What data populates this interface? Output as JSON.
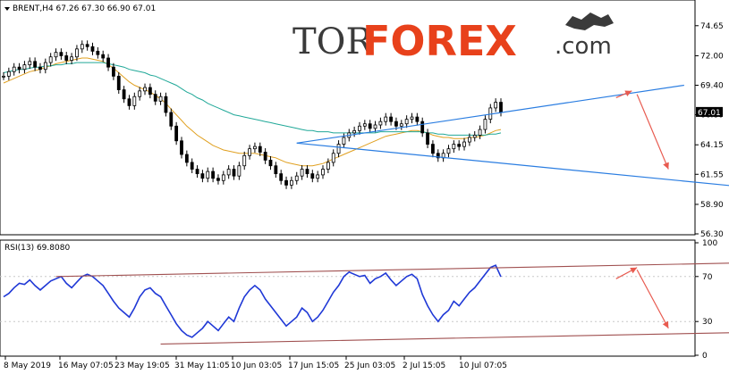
{
  "chart_data": [
    {
      "type": "candlestick",
      "header": "BRENT,H4  67.26 67.30 66.90 67.01",
      "symbol": "BRENT",
      "timeframe": "H4",
      "ohlc": {
        "open": 67.26,
        "high": 67.3,
        "low": 66.9,
        "close": 67.01
      },
      "current_price_label": "67.01",
      "current_price": 67.01,
      "ylim": [
        56.3,
        76.6
      ],
      "yticks": [
        "74.65",
        "72.00",
        "69.40",
        "66.80",
        "64.15",
        "61.55",
        "58.90",
        "56.30"
      ],
      "ytick_values": [
        74.65,
        72.0,
        69.4,
        66.8,
        64.15,
        61.55,
        58.9,
        56.3
      ],
      "x_labels": [
        "8 May 2019",
        "16 May 07:05",
        "23 May 19:05",
        "31 May 11:05",
        "10 Jun 03:05",
        "17 Jun 15:05",
        "25 Jun 03:05",
        "2 Jul 15:05",
        "10 Jul 07:05"
      ],
      "closes": [
        70.2,
        70.6,
        71.0,
        70.8,
        71.2,
        71.5,
        71.0,
        70.8,
        71.4,
        71.9,
        72.3,
        72.0,
        71.6,
        71.9,
        72.6,
        73.0,
        72.8,
        72.4,
        72.1,
        71.8,
        71.0,
        70.2,
        69.0,
        68.2,
        67.6,
        68.4,
        68.9,
        69.2,
        68.6,
        68.0,
        68.4,
        67.0,
        65.8,
        64.5,
        63.3,
        62.6,
        62.0,
        61.6,
        61.2,
        61.8,
        61.2,
        61.0,
        61.5,
        62.0,
        61.4,
        62.3,
        63.2,
        63.8,
        64.0,
        63.5,
        62.8,
        62.3,
        61.6,
        61.0,
        60.6,
        61.0,
        61.4,
        62.0,
        61.6,
        61.2,
        61.5,
        62.0,
        62.6,
        63.4,
        64.2,
        64.8,
        65.2,
        65.4,
        65.8,
        66.0,
        65.6,
        65.9,
        66.2,
        66.6,
        66.2,
        65.8,
        66.0,
        66.4,
        66.6,
        66.2,
        65.2,
        64.2,
        63.4,
        63.0,
        63.4,
        63.8,
        64.2,
        64.0,
        64.4,
        64.8,
        65.0,
        65.5,
        66.4,
        67.4,
        67.9,
        67.01
      ],
      "moving_averages": [
        {
          "color": "#e0a020",
          "values": [
            69.6,
            69.8,
            70.0,
            70.2,
            70.4,
            70.6,
            70.7,
            70.8,
            71.0,
            71.1,
            71.3,
            71.4,
            71.5,
            71.6,
            71.7,
            71.8,
            71.8,
            71.7,
            71.6,
            71.5,
            71.2,
            70.9,
            70.5,
            70.1,
            69.7,
            69.4,
            69.2,
            69.0,
            68.8,
            68.5,
            68.2,
            67.8,
            67.3,
            66.8,
            66.3,
            65.8,
            65.4,
            65.0,
            64.7,
            64.4,
            64.1,
            63.9,
            63.7,
            63.6,
            63.5,
            63.4,
            63.4,
            63.4,
            63.4,
            63.3,
            63.2,
            63.1,
            63.0,
            62.8,
            62.6,
            62.5,
            62.4,
            62.3,
            62.3,
            62.3,
            62.4,
            62.5,
            62.7,
            62.9,
            63.1,
            63.3,
            63.5,
            63.7,
            63.9,
            64.1,
            64.3,
            64.5,
            64.7,
            64.9,
            65.0,
            65.1,
            65.2,
            65.3,
            65.4,
            65.4,
            65.3,
            65.2,
            65.0,
            64.9,
            64.8,
            64.8,
            64.7,
            64.7,
            64.7,
            64.8,
            64.8,
            64.9,
            65.0,
            65.2,
            65.4,
            65.5
          ]
        },
        {
          "color": "#20a898",
          "values": [
            70.5,
            70.6,
            70.7,
            70.8,
            70.8,
            70.9,
            71.0,
            71.0,
            71.1,
            71.1,
            71.2,
            71.2,
            71.3,
            71.3,
            71.4,
            71.4,
            71.4,
            71.4,
            71.4,
            71.4,
            71.3,
            71.2,
            71.1,
            71.0,
            70.8,
            70.7,
            70.6,
            70.5,
            70.3,
            70.2,
            70.0,
            69.8,
            69.6,
            69.4,
            69.1,
            68.8,
            68.6,
            68.3,
            68.1,
            67.8,
            67.6,
            67.4,
            67.2,
            67.0,
            66.8,
            66.7,
            66.6,
            66.5,
            66.4,
            66.3,
            66.2,
            66.1,
            66.0,
            65.9,
            65.8,
            65.7,
            65.6,
            65.5,
            65.4,
            65.4,
            65.3,
            65.3,
            65.3,
            65.2,
            65.2,
            65.2,
            65.2,
            65.2,
            65.2,
            65.2,
            65.2,
            65.2,
            65.3,
            65.3,
            65.3,
            65.3,
            65.3,
            65.3,
            65.3,
            65.3,
            65.3,
            65.2,
            65.2,
            65.1,
            65.1,
            65.0,
            65.0,
            65.0,
            65.0,
            65.0,
            65.0,
            65.0,
            65.0,
            65.1,
            65.1,
            65.2
          ]
        }
      ],
      "trendlines": [
        {
          "color": "#2a7de1",
          "from": [
            56,
            64.3
          ],
          "to": [
            130,
            69.4
          ]
        },
        {
          "color": "#2a7de1",
          "from": [
            56,
            64.3
          ],
          "to": [
            140,
            60.5
          ]
        }
      ],
      "forecast_arrows": [
        {
          "color": "#e85a4f",
          "from": [
            117,
            68.3
          ],
          "to": [
            120,
            68.9
          ]
        },
        {
          "color": "#e85a4f",
          "from": [
            121,
            68.6
          ],
          "to": [
            127,
            62.0
          ]
        }
      ]
    },
    {
      "type": "line",
      "header": "RSI(13) 69.8080",
      "name": "RSI(13) 69.8080",
      "ylim": [
        0,
        100
      ],
      "yticks": [
        "100",
        "70",
        "30",
        "0"
      ],
      "ytick_values": [
        100,
        70,
        30,
        0
      ],
      "levels": [
        70,
        30
      ],
      "values": [
        52,
        55,
        60,
        64,
        63,
        67,
        62,
        58,
        62,
        66,
        68,
        70,
        64,
        60,
        65,
        70,
        72,
        70,
        66,
        62,
        55,
        48,
        42,
        38,
        34,
        42,
        52,
        58,
        60,
        55,
        52,
        44,
        36,
        28,
        22,
        18,
        16,
        20,
        24,
        30,
        26,
        22,
        28,
        34,
        30,
        42,
        52,
        58,
        62,
        58,
        50,
        44,
        38,
        32,
        26,
        30,
        34,
        42,
        38,
        30,
        34,
        40,
        48,
        56,
        62,
        70,
        74,
        72,
        70,
        71,
        64,
        68,
        70,
        73,
        67,
        62,
        66,
        70,
        72,
        68,
        54,
        44,
        36,
        30,
        36,
        40,
        48,
        44,
        50,
        56,
        60,
        66,
        72,
        78,
        80,
        69.8
      ],
      "trendlines": [
        {
          "color": "#a05050",
          "from": [
            10,
            70
          ],
          "to": [
            140,
            82
          ]
        },
        {
          "color": "#a05050",
          "from": [
            30,
            10
          ],
          "to": [
            160,
            22
          ]
        }
      ],
      "forecast_arrows": [
        {
          "color": "#e85a4f",
          "from": [
            117,
            68
          ],
          "to": [
            121,
            78
          ]
        },
        {
          "color": "#e85a4f",
          "from": [
            121,
            76
          ],
          "to": [
            127,
            24
          ]
        }
      ]
    }
  ],
  "watermark": {
    "part1": "TOR",
    "part2": "FOREX",
    "part3": ".com"
  }
}
